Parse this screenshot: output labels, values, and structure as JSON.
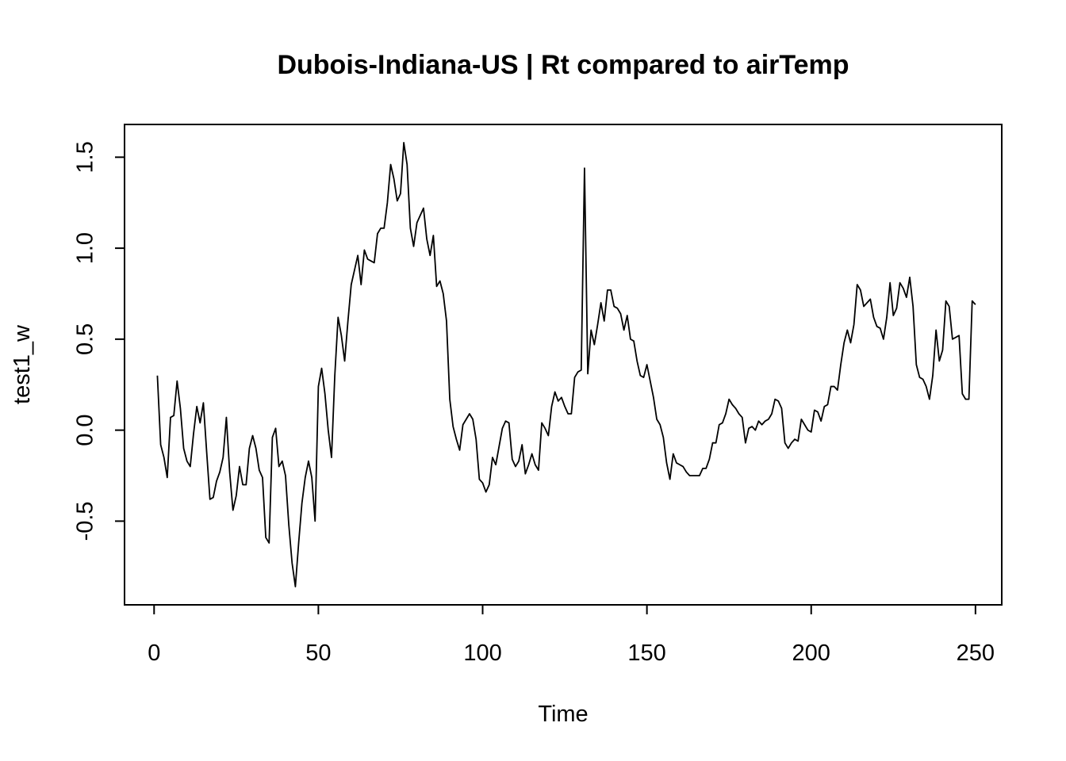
{
  "chart_data": {
    "type": "line",
    "title": "Dubois-Indiana-US | Rt compared to airTemp",
    "xlabel": "Time",
    "ylabel": "test1_w",
    "xlim": [
      -9,
      258
    ],
    "ylim": [
      -0.96,
      1.68
    ],
    "x_ticks": [
      0,
      50,
      100,
      150,
      200,
      250
    ],
    "x_tick_labels": [
      "0",
      "50",
      "100",
      "150",
      "200",
      "250"
    ],
    "y_ticks": [
      -0.5,
      0.0,
      0.5,
      1.0,
      1.5
    ],
    "y_tick_labels": [
      "-0.5",
      "0.0",
      "0.5",
      "1.0",
      "1.5"
    ],
    "grid": false,
    "series": [
      {
        "x_start": 1,
        "values": [
          0.3,
          -0.08,
          -0.15,
          -0.26,
          0.07,
          0.08,
          0.27,
          0.12,
          -0.1,
          -0.17,
          -0.2,
          -0.02,
          0.13,
          0.04,
          0.15,
          -0.12,
          -0.38,
          -0.37,
          -0.28,
          -0.23,
          -0.15,
          0.07,
          -0.23,
          -0.44,
          -0.36,
          -0.2,
          -0.3,
          -0.3,
          -0.1,
          -0.03,
          -0.1,
          -0.22,
          -0.26,
          -0.59,
          -0.62,
          -0.04,
          0.01,
          -0.2,
          -0.17,
          -0.25,
          -0.52,
          -0.73,
          -0.86,
          -0.62,
          -0.4,
          -0.26,
          -0.17,
          -0.26,
          -0.5,
          0.24,
          0.34,
          0.2,
          0.0,
          -0.15,
          0.3,
          0.62,
          0.52,
          0.38,
          0.6,
          0.8,
          0.88,
          0.96,
          0.8,
          0.99,
          0.94,
          0.93,
          0.92,
          1.08,
          1.11,
          1.11,
          1.25,
          1.46,
          1.38,
          1.26,
          1.3,
          1.58,
          1.46,
          1.11,
          1.01,
          1.14,
          1.18,
          1.22,
          1.05,
          0.96,
          1.07,
          0.79,
          0.82,
          0.75,
          0.6,
          0.17,
          0.02,
          -0.05,
          -0.11,
          0.03,
          0.06,
          0.09,
          0.06,
          -0.05,
          -0.27,
          -0.29,
          -0.34,
          -0.3,
          -0.15,
          -0.19,
          -0.09,
          0.01,
          0.05,
          0.04,
          -0.16,
          -0.2,
          -0.17,
          -0.08,
          -0.24,
          -0.19,
          -0.13,
          -0.19,
          -0.22,
          0.04,
          0.01,
          -0.03,
          0.13,
          0.21,
          0.16,
          0.18,
          0.13,
          0.09,
          0.09,
          0.29,
          0.32,
          0.33,
          1.44,
          0.31,
          0.55,
          0.47,
          0.58,
          0.7,
          0.6,
          0.77,
          0.77,
          0.68,
          0.67,
          0.64,
          0.55,
          0.63,
          0.5,
          0.49,
          0.38,
          0.3,
          0.29,
          0.36,
          0.27,
          0.18,
          0.06,
          0.03,
          -0.04,
          -0.18,
          -0.27,
          -0.13,
          -0.18,
          -0.19,
          -0.2,
          -0.23,
          -0.25,
          -0.25,
          -0.25,
          -0.25,
          -0.21,
          -0.21,
          -0.16,
          -0.07,
          -0.07,
          0.03,
          0.04,
          0.09,
          0.17,
          0.14,
          0.12,
          0.09,
          0.07,
          -0.07,
          0.01,
          0.02,
          0.0,
          0.05,
          0.03,
          0.05,
          0.06,
          0.09,
          0.17,
          0.16,
          0.12,
          -0.07,
          -0.1,
          -0.07,
          -0.05,
          -0.06,
          0.06,
          0.03,
          0.0,
          -0.01,
          0.11,
          0.1,
          0.05,
          0.13,
          0.14,
          0.24,
          0.24,
          0.22,
          0.36,
          0.48,
          0.55,
          0.48,
          0.58,
          0.8,
          0.77,
          0.68,
          0.7,
          0.72,
          0.62,
          0.57,
          0.56,
          0.5,
          0.62,
          0.81,
          0.63,
          0.67,
          0.81,
          0.78,
          0.73,
          0.84,
          0.68,
          0.36,
          0.29,
          0.28,
          0.24,
          0.17,
          0.3,
          0.55,
          0.38,
          0.44,
          0.71,
          0.68,
          0.5,
          0.51,
          0.52,
          0.2,
          0.17,
          0.17,
          0.71,
          0.69
        ]
      }
    ]
  }
}
